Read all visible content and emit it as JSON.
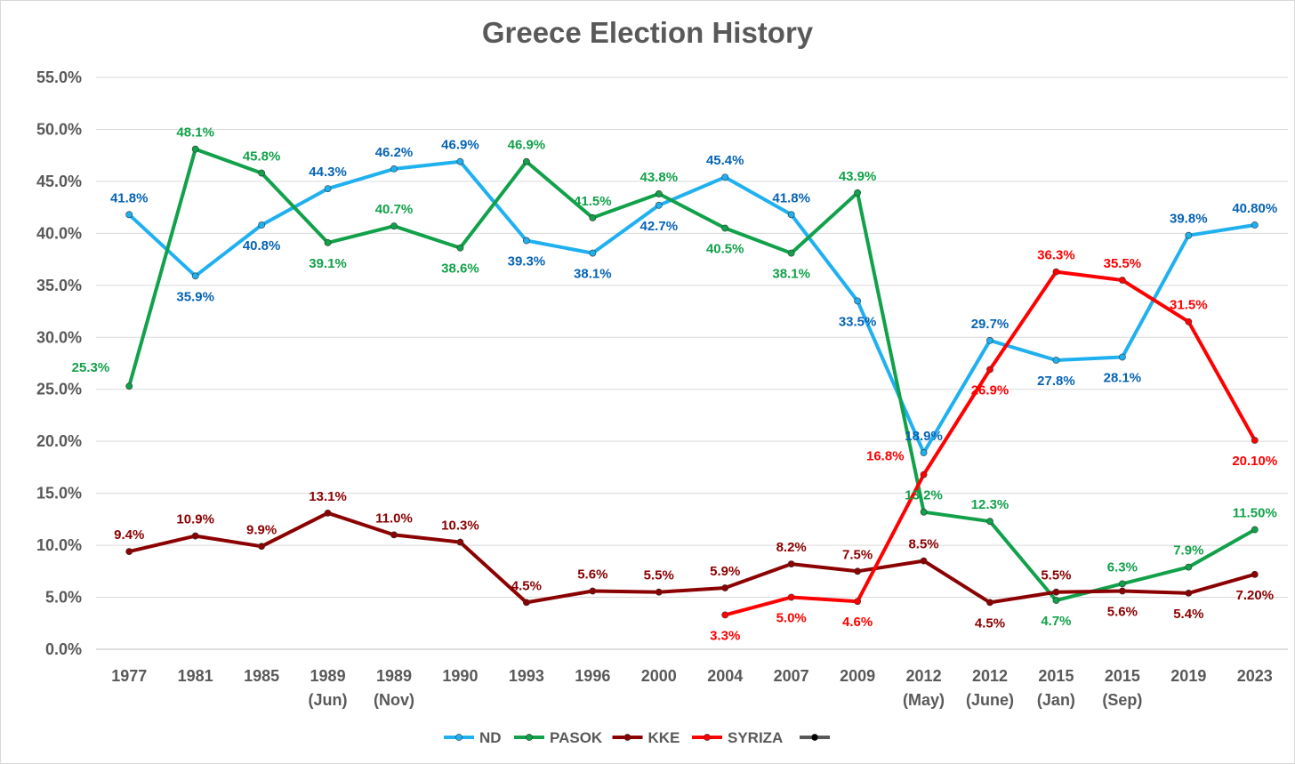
{
  "chart_data": {
    "type": "line",
    "title": "Greece Election History",
    "categories": [
      [
        "1977"
      ],
      [
        "1981"
      ],
      [
        "1985"
      ],
      [
        "1989",
        "(Jun)"
      ],
      [
        "1989",
        "(Nov)"
      ],
      [
        "1990"
      ],
      [
        "1993"
      ],
      [
        "1996"
      ],
      [
        "2000"
      ],
      [
        "2004"
      ],
      [
        "2007"
      ],
      [
        "2009"
      ],
      [
        "2012",
        "(May)"
      ],
      [
        "2012",
        "(June)"
      ],
      [
        "2015",
        "(Jan)"
      ],
      [
        "2015",
        "(Sep)"
      ],
      [
        "2019"
      ],
      [
        "2023"
      ]
    ],
    "ylim": [
      0,
      55
    ],
    "yticks": [
      "0.0%",
      "5.0%",
      "10.0%",
      "15.0%",
      "20.0%",
      "25.0%",
      "30.0%",
      "35.0%",
      "40.0%",
      "45.0%",
      "50.0%",
      "55.0%"
    ],
    "grid": true,
    "legend_position": "bottom",
    "series": [
      {
        "name": "ND",
        "color": "#1fb0f0",
        "label_color": "#0563b5",
        "values": [
          41.8,
          35.9,
          40.8,
          44.3,
          46.2,
          46.9,
          39.3,
          38.1,
          42.7,
          45.4,
          41.8,
          33.5,
          18.9,
          29.7,
          27.8,
          28.1,
          39.8,
          40.8
        ],
        "labels": [
          "41.8%",
          "35.9%",
          "40.8%",
          "44.3%",
          "46.2%",
          "46.9%",
          "39.3%",
          "38.1%",
          "42.7%",
          "45.4%",
          "41.8%",
          "33.5%",
          "18.9%",
          "29.7%",
          "27.8%",
          "28.1%",
          "39.8%",
          "40.80%"
        ],
        "label_pos": [
          "a",
          "b",
          "b",
          "a",
          "a",
          "a",
          "b",
          "b",
          "b",
          "a",
          "a",
          "b",
          "a",
          "a",
          "b",
          "b",
          "a",
          "a"
        ]
      },
      {
        "name": "PASOK",
        "color": "#11a14a",
        "label_color": "#11a14a",
        "values": [
          25.3,
          48.1,
          45.8,
          39.1,
          40.7,
          38.6,
          46.9,
          41.5,
          43.8,
          40.5,
          38.1,
          43.9,
          13.2,
          12.3,
          4.7,
          6.3,
          7.9,
          11.5
        ],
        "labels": [
          "25.3%",
          "48.1%",
          "45.8%",
          "39.1%",
          "40.7%",
          "38.6%",
          "46.9%",
          "41.5%",
          "43.8%",
          "40.5%",
          "38.1%",
          "43.9%",
          "13.2%",
          "12.3%",
          "4.7%",
          "6.3%",
          "7.9%",
          "11.50%"
        ],
        "label_pos": [
          "l",
          "a",
          "a",
          "b",
          "a",
          "b",
          "a",
          "a",
          "a",
          "b",
          "b",
          "a",
          "a",
          "a",
          "b",
          "a",
          "a",
          "a"
        ]
      },
      {
        "name": "KKE",
        "color": "#8b0000",
        "label_color": "#8b0000",
        "values": [
          9.4,
          10.9,
          9.9,
          13.1,
          11.0,
          10.3,
          4.5,
          5.6,
          5.5,
          5.9,
          8.2,
          7.5,
          8.5,
          4.5,
          5.5,
          5.6,
          5.4,
          7.2
        ],
        "labels": [
          "9.4%",
          "10.9%",
          "9.9%",
          "13.1%",
          "11.0%",
          "10.3%",
          "4.5%",
          "5.6%",
          "5.5%",
          "5.9%",
          "8.2%",
          "7.5%",
          "8.5%",
          "4.5%",
          "5.5%",
          "5.6%",
          "5.4%",
          "7.20%"
        ],
        "label_pos": [
          "a",
          "a",
          "a",
          "a",
          "a",
          "a",
          "a",
          "a",
          "a",
          "a",
          "a",
          "a",
          "a",
          "b",
          "a",
          "b",
          "b",
          "b"
        ]
      },
      {
        "name": "SYRIZA",
        "color": "#ff0000",
        "label_color": "#ff0000",
        "values": [
          null,
          null,
          null,
          null,
          null,
          null,
          null,
          null,
          null,
          3.3,
          5.0,
          4.6,
          16.8,
          26.9,
          36.3,
          35.5,
          31.5,
          20.1
        ],
        "labels": [
          "",
          "",
          "",
          "",
          "",
          "",
          "",
          "",
          "",
          "3.3%",
          "5.0%",
          "4.6%",
          "16.8%",
          "26.9%",
          "36.3%",
          "35.5%",
          "31.5%",
          "20.10%"
        ],
        "label_pos": [
          "",
          "",
          "",
          "",
          "",
          "",
          "",
          "",
          "",
          "b",
          "b",
          "b",
          "l",
          "b",
          "a",
          "a",
          "a",
          "b"
        ]
      }
    ],
    "legend": [
      {
        "name": "ND",
        "color": "#1fb0f0"
      },
      {
        "name": "PASOK",
        "color": "#11a14a"
      },
      {
        "name": "KKE",
        "color": "#8b0000"
      },
      {
        "name": "SYRIZA",
        "color": "#ff0000"
      },
      {
        "name": "",
        "color": "#595959",
        "marker": "#000000"
      }
    ]
  }
}
